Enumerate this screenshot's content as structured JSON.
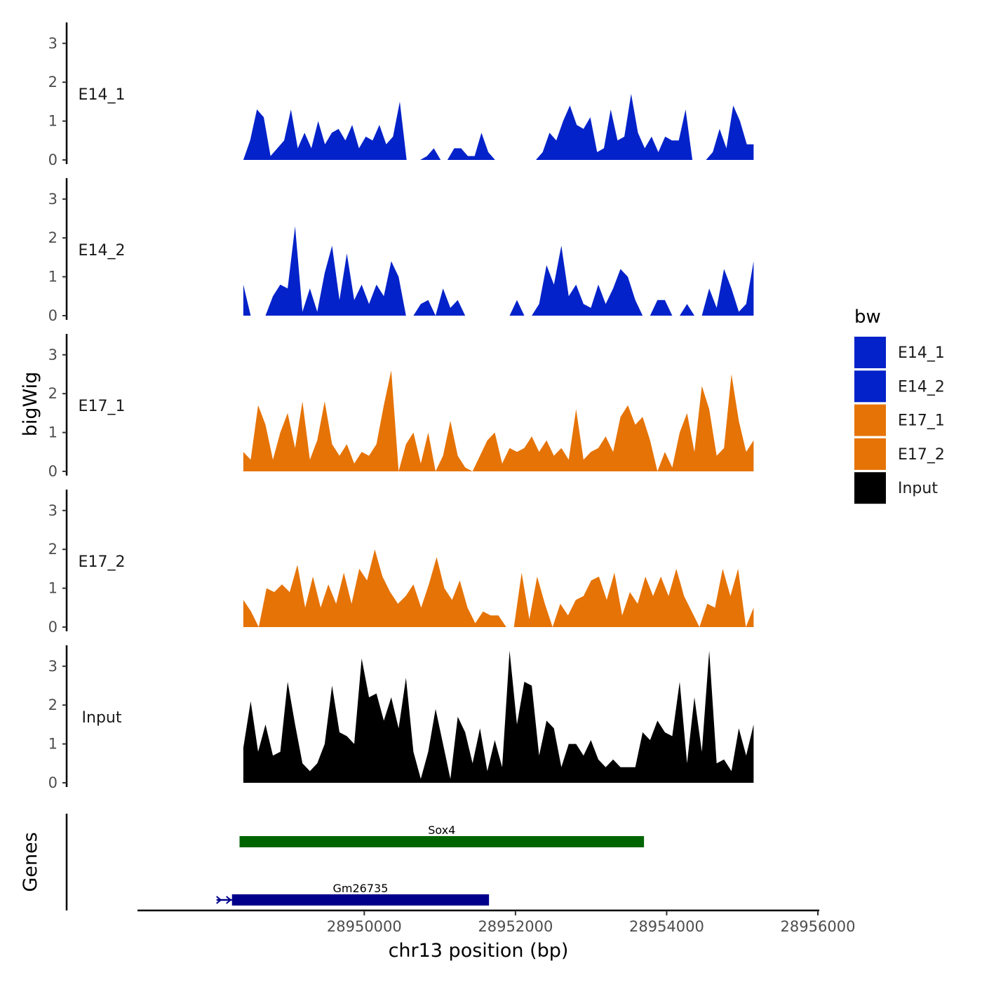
{
  "chart_data": {
    "type": "area",
    "ylabel": "bigWig",
    "xlabel": "chr13 position (bp)",
    "genes_label": "Genes",
    "ylim": [
      0,
      3.5
    ],
    "yticks": [
      0,
      1,
      2,
      3
    ],
    "xlim": [
      28947000,
      28956000
    ],
    "xticks": [
      28950000,
      28952000,
      28954000,
      28956000
    ],
    "xtick_labels": [
      "28950000",
      "28952000",
      "28954000",
      "28956000"
    ],
    "x_range": [
      28948400,
      28955150
    ],
    "legend": {
      "title": "bw",
      "entries": [
        {
          "label": "E14_1",
          "color": "#0322c9"
        },
        {
          "label": "E14_2",
          "color": "#0322c9"
        },
        {
          "label": "E17_1",
          "color": "#e67306"
        },
        {
          "label": "E17_2",
          "color": "#e67306"
        },
        {
          "label": "Input",
          "color": "#000000"
        }
      ]
    },
    "series": [
      {
        "name": "E14_1",
        "color": "#0322c9",
        "values": [
          0,
          0.5,
          1.3,
          1.1,
          0.1,
          0.3,
          0.5,
          1.3,
          0.3,
          0.7,
          0.3,
          1.0,
          0.4,
          0.7,
          0.8,
          0.5,
          0.9,
          0.3,
          0.6,
          0.5,
          0.9,
          0.4,
          0.6,
          1.5,
          0,
          0,
          0,
          0.1,
          0.3,
          0,
          0,
          0.3,
          0.3,
          0.1,
          0.1,
          0.7,
          0.2,
          0,
          0,
          0,
          0,
          0,
          0,
          0,
          0.2,
          0.7,
          0.5,
          1.0,
          1.4,
          0.9,
          0.8,
          1.1,
          0.2,
          0.3,
          1.3,
          0.5,
          0.6,
          1.7,
          0.7,
          0.3,
          0.6,
          0.2,
          0.6,
          0.5,
          0.5,
          1.3,
          0,
          0,
          0,
          0.2,
          0.8,
          0.3,
          1.4,
          1.0,
          0.4,
          0.4
        ]
      },
      {
        "name": "E14_2",
        "color": "#0322c9",
        "values": [
          0.8,
          0,
          0,
          0,
          0.5,
          0.8,
          0.7,
          2.3,
          0.1,
          0.7,
          0.1,
          1.1,
          1.8,
          0.4,
          1.6,
          0.4,
          0.8,
          0.3,
          0.8,
          0.5,
          1.4,
          1.0,
          0,
          0,
          0.3,
          0.4,
          0,
          0.7,
          0.2,
          0.4,
          0,
          0,
          0,
          0,
          0,
          0,
          0,
          0.4,
          0,
          0,
          0.3,
          1.3,
          0.8,
          1.8,
          0.5,
          0.8,
          0.3,
          0.2,
          0.8,
          0.3,
          0.7,
          1.2,
          1.0,
          0.4,
          0,
          0,
          0.4,
          0.4,
          0,
          0,
          0.3,
          0,
          0,
          0.7,
          0.2,
          1.2,
          0.7,
          0.1,
          0.3,
          1.4
        ]
      },
      {
        "name": "E17_1",
        "color": "#e67306",
        "values": [
          0.5,
          0.3,
          1.7,
          1.2,
          0.3,
          1.0,
          1.5,
          0.6,
          1.8,
          0.3,
          0.8,
          1.8,
          0.7,
          0.4,
          0.7,
          0.2,
          0.5,
          0.4,
          0.7,
          1.7,
          2.6,
          0,
          0.7,
          1.0,
          0.2,
          1.0,
          0,
          0.4,
          1.3,
          0.4,
          0.1,
          0,
          0.4,
          0.8,
          1.0,
          0.2,
          0.6,
          0.5,
          0.6,
          0.9,
          0.5,
          0.8,
          0.4,
          0.6,
          0.3,
          1.6,
          0.3,
          0.5,
          0.6,
          0.9,
          0.5,
          1.4,
          1.7,
          1.2,
          1.4,
          0.8,
          0,
          0.5,
          0.1,
          1.0,
          1.5,
          0.5,
          2.2,
          1.6,
          0.4,
          0.6,
          2.5,
          1.3,
          0.5,
          0.8
        ]
      },
      {
        "name": "E17_2",
        "color": "#e67306",
        "values": [
          0.7,
          0.4,
          0,
          1.0,
          0.9,
          1.1,
          0.9,
          1.6,
          0.5,
          1.3,
          0.5,
          1.1,
          0.6,
          1.4,
          0.6,
          1.5,
          1.2,
          2.0,
          1.3,
          0.9,
          0.6,
          0.8,
          1.1,
          0.5,
          1.1,
          1.8,
          1.0,
          0.7,
          1.2,
          0.5,
          0.1,
          0.4,
          0.3,
          0.3,
          0,
          0,
          1.4,
          0.2,
          1.3,
          0.6,
          0,
          0.6,
          0.3,
          0.7,
          0.8,
          1.2,
          1.3,
          0.7,
          1.4,
          0.3,
          0.9,
          0.6,
          1.3,
          0.8,
          1.3,
          0.8,
          1.5,
          0.8,
          0.4,
          0,
          0.6,
          0.5,
          1.5,
          0.8,
          1.5,
          0,
          0.5
        ]
      },
      {
        "name": "Input",
        "color": "#000000",
        "values": [
          0.9,
          2.1,
          0.8,
          1.5,
          0.7,
          0.8,
          2.6,
          1.5,
          0.5,
          0.3,
          0.5,
          1.0,
          2.5,
          1.3,
          1.2,
          1.0,
          3.2,
          2.2,
          2.3,
          1.6,
          2.2,
          1.4,
          2.7,
          0.8,
          0.1,
          0.8,
          1.9,
          1.0,
          0.1,
          1.7,
          1.3,
          0.5,
          1.4,
          0.3,
          1.1,
          0.4,
          3.4,
          1.5,
          2.6,
          2.5,
          0.7,
          1.6,
          1.4,
          0.4,
          1.0,
          1.0,
          0.7,
          1.1,
          0.6,
          0.4,
          0.6,
          0.4,
          0.4,
          0.4,
          1.3,
          1.1,
          1.6,
          1.3,
          1.2,
          2.6,
          0.5,
          2.2,
          0.8,
          3.4,
          0.5,
          0.6,
          0.3,
          1.4,
          0.7,
          1.5
        ]
      }
    ],
    "genes": [
      {
        "name": "Sox4",
        "color": "#006400",
        "start": 28948350,
        "end": 28953700
      },
      {
        "name": "Gm26735",
        "color": "#00008b",
        "start": 28948250,
        "end": 28951650
      }
    ]
  }
}
